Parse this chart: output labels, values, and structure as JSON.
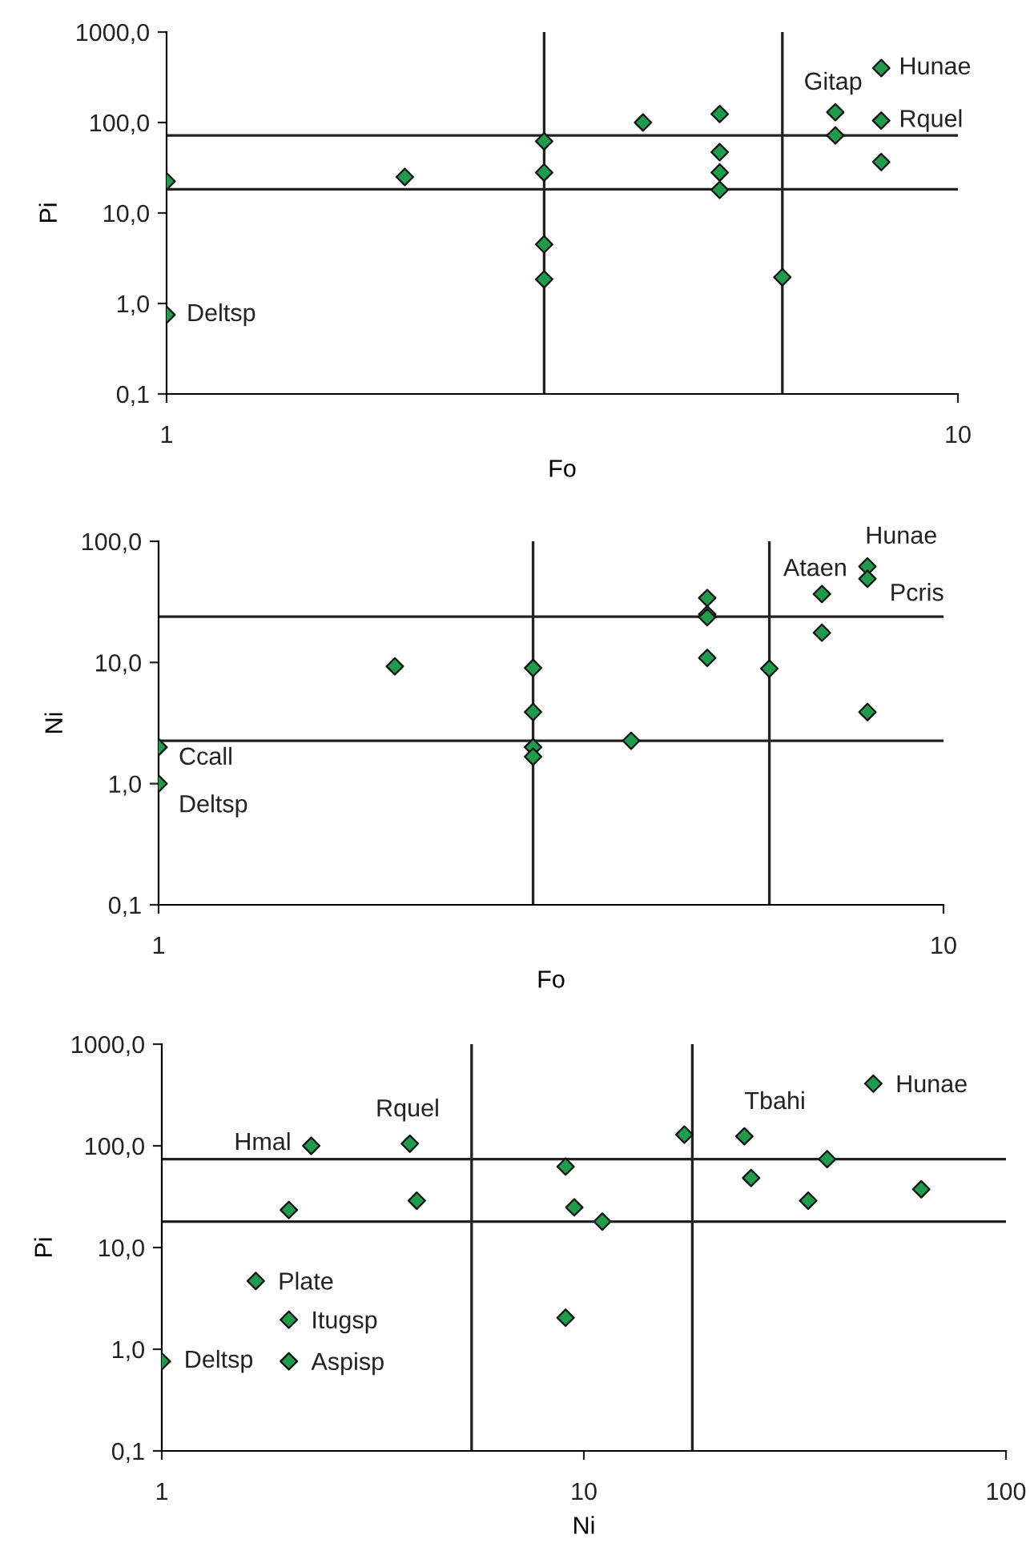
{
  "chart_data": [
    {
      "type": "scatter",
      "xlabel": "Fo",
      "ylabel": "Pi",
      "log": "xy",
      "marker": "diamond",
      "grid": false,
      "xlim": [
        1,
        10
      ],
      "xticks": [
        1,
        10
      ],
      "ylim": [
        0.1,
        1000
      ],
      "yticks": [
        {
          "value": 0.1,
          "label": "0,1"
        },
        {
          "value": 1,
          "label": "1,0"
        },
        {
          "value": 10,
          "label": "10,0"
        },
        {
          "value": 100,
          "label": "100,0"
        },
        {
          "value": 1000,
          "label": "1000,0"
        }
      ],
      "series": [
        {
          "color": "#1e9c4c",
          "x": [
            1,
            1,
            2,
            3,
            3,
            3,
            3,
            4,
            5,
            5,
            5,
            5,
            6,
            7,
            7,
            8,
            8,
            8
          ],
          "values": [
            22.4,
            0.75,
            25,
            62,
            28,
            4.5,
            1.85,
            100,
            124,
            47,
            28,
            18,
            1.95,
            130,
            72,
            400,
            105,
            36.6
          ]
        }
      ],
      "ref_lines": [
        {
          "axis": "x",
          "value": 3
        },
        {
          "axis": "x",
          "value": 6
        },
        {
          "axis": "y",
          "value": 72
        },
        {
          "axis": "y",
          "value": 18.3
        }
      ],
      "annotations": [
        {
          "text": "Deltsp",
          "x": 1,
          "y": 0.75
        },
        {
          "text": "Gitap",
          "x": 7,
          "y": 130
        },
        {
          "text": "Hunae",
          "x": 8,
          "y": 400
        },
        {
          "text": "Rquel",
          "x": 8,
          "y": 105
        }
      ]
    },
    {
      "type": "scatter",
      "xlabel": "Fo",
      "ylabel": "Ni",
      "log": "xy",
      "marker": "diamond",
      "grid": false,
      "xlim": [
        1,
        10
      ],
      "xticks": [
        1,
        10
      ],
      "ylim": [
        0.1,
        100
      ],
      "yticks": [
        {
          "value": 0.1,
          "label": "0,1"
        },
        {
          "value": 1,
          "label": "1,0"
        },
        {
          "value": 10,
          "label": "10,0"
        },
        {
          "value": 100,
          "label": "100,0"
        }
      ],
      "series": [
        {
          "color": "#1e9c4c",
          "x": [
            1,
            1,
            2,
            3,
            3,
            3,
            3,
            4,
            5,
            5,
            5,
            5,
            6,
            7,
            7,
            8,
            8,
            8
          ],
          "values": [
            2.0,
            1.0,
            9.3,
            9.0,
            3.9,
            2.0,
            1.67,
            2.26,
            34,
            25,
            23.6,
            10.9,
            8.9,
            36.7,
            17.6,
            62,
            49,
            3.9
          ]
        }
      ],
      "ref_lines": [
        {
          "axis": "x",
          "value": 3
        },
        {
          "axis": "x",
          "value": 6
        },
        {
          "axis": "y",
          "value": 23.9
        },
        {
          "axis": "y",
          "value": 2.26
        }
      ],
      "annotations": [
        {
          "text": "Ccall",
          "x": 1,
          "y": 2.0
        },
        {
          "text": "Deltsp",
          "x": 1,
          "y": 1.0
        },
        {
          "text": "Hunae",
          "x": 8,
          "y": 62
        },
        {
          "text": "Ataen",
          "x": 7,
          "y": 36.7
        },
        {
          "text": "Pcris",
          "x": 8,
          "y": 49
        }
      ]
    },
    {
      "type": "scatter",
      "xlabel": "Ni",
      "ylabel": "Pi",
      "log": "xy",
      "marker": "diamond",
      "grid": false,
      "xlim": [
        1,
        100
      ],
      "xticks": [
        1,
        10,
        100
      ],
      "ylim": [
        0.1,
        1000
      ],
      "yticks": [
        {
          "value": 0.1,
          "label": "0,1"
        },
        {
          "value": 1,
          "label": "1,0"
        },
        {
          "value": 10,
          "label": "10,0"
        },
        {
          "value": 100,
          "label": "100,0"
        },
        {
          "value": 1000,
          "label": "1000,0"
        }
      ],
      "series": [
        {
          "color": "#1e9c4c",
          "x": [
            1,
            1.67,
            2,
            2,
            2,
            2.26,
            3.87,
            4.02,
            9.05,
            9.49,
            11.06,
            9.05,
            17.3,
            24.0,
            24.9,
            34.0,
            37.7,
            48.5,
            63
          ],
          "values": [
            0.76,
            4.69,
            1.95,
            0.76,
            23.4,
            100,
            105,
            28.9,
            62.5,
            24.8,
            18,
            2.04,
            129,
            124,
            48.3,
            28.9,
            73.9,
            409,
            37.4
          ]
        }
      ],
      "ref_lines": [
        {
          "axis": "x",
          "value": 5.42
        },
        {
          "axis": "x",
          "value": 18.07
        },
        {
          "axis": "y",
          "value": 73.9
        },
        {
          "axis": "y",
          "value": 18
        }
      ],
      "annotations": [
        {
          "text": "Deltsp",
          "x": 1,
          "y": 0.76
        },
        {
          "text": "Plate",
          "x": 1.67,
          "y": 4.69
        },
        {
          "text": "Itugsp",
          "x": 2,
          "y": 1.95
        },
        {
          "text": "Aspisp",
          "x": 2,
          "y": 0.76
        },
        {
          "text": "Hmal",
          "x": 2.26,
          "y": 100
        },
        {
          "text": "Rquel",
          "x": 3.87,
          "y": 105
        },
        {
          "text": "Tbahi",
          "x": 24.0,
          "y": 124
        },
        {
          "text": "Hunae",
          "x": 48.5,
          "y": 409
        }
      ]
    }
  ]
}
